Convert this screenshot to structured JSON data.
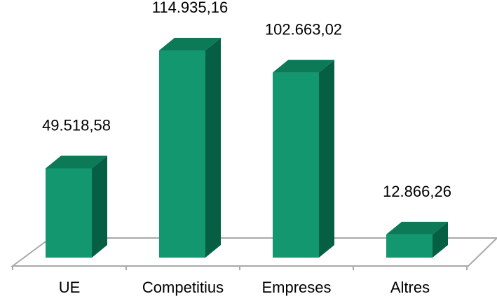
{
  "chart_data": {
    "type": "bar",
    "categories": [
      "UE",
      "Competitius",
      "Empreses",
      "Altres"
    ],
    "values": [
      49518.58,
      114935.16,
      102663.02,
      12866.26
    ],
    "value_labels": [
      "49.518,58",
      "114.935,16",
      "102.663,02",
      "12.866,26"
    ],
    "title": "",
    "xlabel": "",
    "ylabel": "",
    "ylim": [
      0,
      114935.16
    ],
    "grid": false,
    "legend": "none",
    "style": "3d",
    "colors": {
      "front": "#12976f",
      "top": "#0c7a57",
      "side": "#075f43",
      "floor": "#a9a9a9"
    }
  }
}
